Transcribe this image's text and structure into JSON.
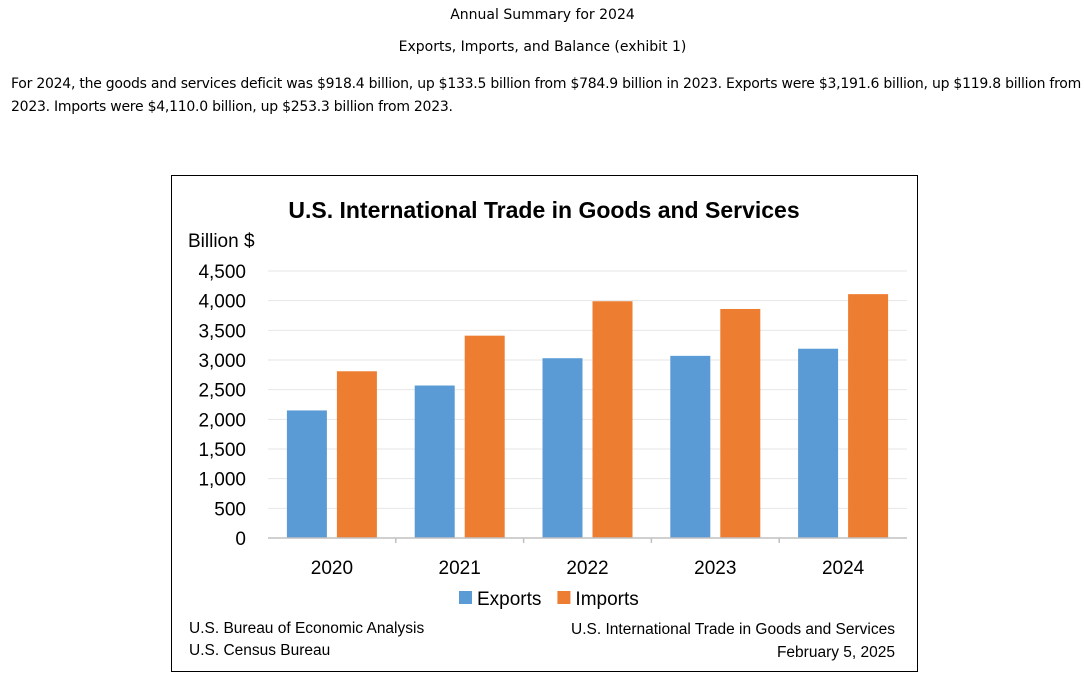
{
  "page": {
    "heading": "Annual Summary for 2024",
    "subheading": "Exports, Imports, and Balance (exhibit 1)",
    "summary": "For 2024, the goods and services deficit was $918.4 billion, up $133.5 billion from $784.9 billion in 2023. Exports were $3,191.6 billion, up $119.8 billion from 2023. Imports were $4,110.0 billion, up $253.3 billion from 2023."
  },
  "chart_data": {
    "type": "bar",
    "title": "U.S. International Trade in Goods and Services",
    "ylabel": "Billion $",
    "xlabel": "",
    "categories": [
      "2020",
      "2021",
      "2022",
      "2023",
      "2024"
    ],
    "series": [
      {
        "name": "Exports",
        "color": "#5B9BD5",
        "values": [
          2150,
          2570,
          3030,
          3070,
          3190
        ]
      },
      {
        "name": "Imports",
        "color": "#ED7D31",
        "values": [
          2810,
          3410,
          3990,
          3860,
          4110
        ]
      }
    ],
    "ylim": [
      0,
      4500
    ],
    "yticks": [
      "0",
      "500",
      "1,000",
      "1,500",
      "2,000",
      "2,500",
      "3,000",
      "3,500",
      "4,000",
      "4,500"
    ],
    "grid": true,
    "legend": "bottom",
    "footer_left": [
      "U.S. Bureau of Economic Analysis",
      "U.S. Census Bureau"
    ],
    "footer_right": [
      "U.S. International Trade in Goods and Services",
      "February 5, 2025"
    ]
  }
}
